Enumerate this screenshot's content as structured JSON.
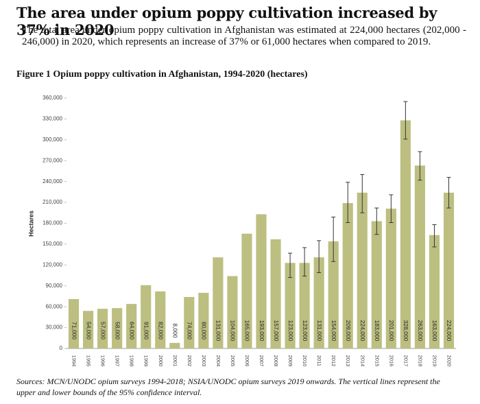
{
  "document": {
    "heading": "The area under opium poppy cultivation increased by 37% in 2020",
    "paragraph": "The total area under opium poppy cultivation in Afghanistan was estimated at 224,000 hectares (202,000 - 246,000) in 2020, which represents an increase of 37% or 61,000 hectares when compared to 2019."
  },
  "chart_data": {
    "type": "bar",
    "title": "Figure 1 Opium poppy cultivation in Afghanistan, 1994-2020 (hectares)",
    "ylabel": "Hectares",
    "note": "Sources: MCN/UNODC opium surveys 1994-2018; NSIA/UNODC opium surveys 2019 onwards. The vertical lines represent the upper and lower bounds of the 95% confidence interval.",
    "categories": [
      "1994",
      "1995",
      "1996",
      "1997",
      "1998",
      "1999",
      "2000",
      "2001",
      "2002",
      "2003",
      "2004",
      "2005",
      "2006",
      "2007",
      "2008",
      "2009",
      "2010",
      "2011",
      "2012",
      "2013",
      "2014",
      "2015",
      "2016",
      "2017",
      "2018",
      "2019",
      "2020"
    ],
    "values": [
      71000,
      54000,
      57000,
      58000,
      64000,
      91000,
      82000,
      8000,
      74000,
      80000,
      131000,
      104000,
      165000,
      193000,
      157000,
      123000,
      123000,
      131000,
      154000,
      209000,
      224000,
      183000,
      201000,
      328000,
      263000,
      163000,
      224000
    ],
    "value_labels": [
      "71,000",
      "54,000",
      "57,000",
      "58,000",
      "64,000",
      "91,000",
      "82,000",
      "8,000",
      "74,000",
      "80,000",
      "131,000",
      "104,000",
      "165,000",
      "193,000",
      "157,000",
      "123,000",
      "123,000",
      "131,000",
      "154,000",
      "209,000",
      "224,000",
      "183,000",
      "201,000",
      "328,000",
      "263,000",
      "163,000",
      "224,000"
    ],
    "error_low": [
      null,
      null,
      null,
      null,
      null,
      null,
      null,
      null,
      null,
      null,
      null,
      null,
      null,
      null,
      null,
      102000,
      104000,
      109000,
      125000,
      181000,
      195000,
      164000,
      181000,
      301000,
      242000,
      146000,
      202000
    ],
    "error_high": [
      null,
      null,
      null,
      null,
      null,
      null,
      null,
      null,
      null,
      null,
      null,
      null,
      null,
      null,
      null,
      137000,
      145000,
      155000,
      189000,
      239000,
      250000,
      202000,
      221000,
      355000,
      283000,
      178000,
      246000
    ],
    "color": "#bcbf80",
    "ylim": [
      0,
      360000
    ],
    "yticks": [
      0,
      {
        "value": 30000,
        "label": "30,000"
      },
      {
        "value": 60000,
        "label": "60,000"
      },
      {
        "value": 90000,
        "label": "90,000"
      },
      {
        "value": 120000,
        "label": "120,000"
      },
      {
        "value": 150000,
        "label": "150,000"
      },
      {
        "value": 180000,
        "label": "180,000"
      },
      {
        "value": 210000,
        "label": "210,000"
      },
      {
        "value": 240000,
        "label": "240,000"
      },
      {
        "value": 270000,
        "label": "270,000"
      },
      {
        "value": 300000,
        "label": "300,000"
      },
      {
        "value": 330000,
        "label": "330,000"
      },
      {
        "value": 360000,
        "label": "360,000"
      }
    ]
  }
}
